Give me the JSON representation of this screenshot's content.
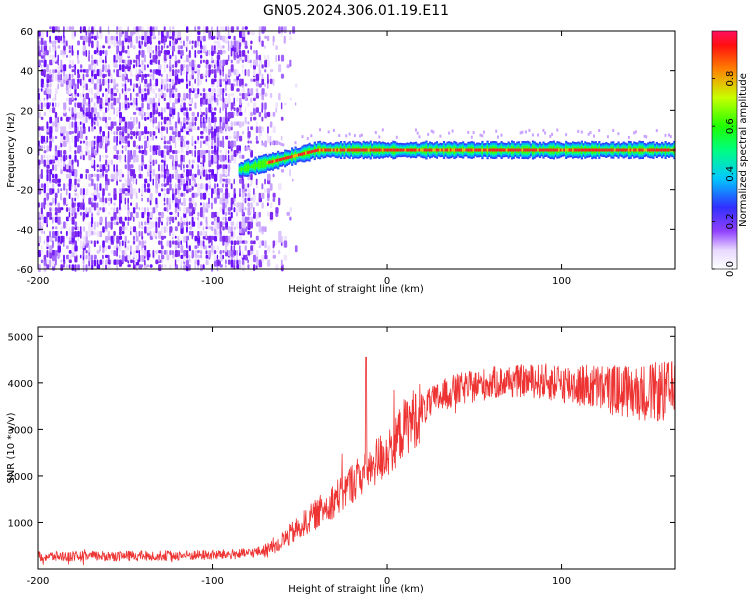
{
  "title": "GN05.2024.306.01.19.E11",
  "chart_data": [
    {
      "type": "heatmap",
      "xlabel": "Height of straight line (km)",
      "ylabel": "Frequency (Hz)",
      "xlim": [
        -200,
        165
      ],
      "ylim": [
        -60,
        60
      ],
      "xticks": [
        -200,
        -100,
        0,
        100
      ],
      "xtick_labels": [
        "-200",
        "-100",
        "0",
        "100"
      ],
      "yticks": [
        -60,
        -40,
        -20,
        0,
        20,
        40,
        60
      ],
      "ytick_labels": [
        "-60",
        "-40",
        "-20",
        "0",
        "20",
        "40",
        "60"
      ],
      "colorbar": {
        "label": "Normalized spectral amplitude",
        "range": [
          0,
          1
        ],
        "ticks": [
          0.0,
          0.2,
          0.4,
          0.6,
          0.8
        ],
        "tick_labels": [
          "0.0",
          "0.2",
          "0.4",
          "0.6",
          "0.8"
        ]
      },
      "features": {
        "noise_region_x": [
          -200,
          -60
        ],
        "signal_line_start_x": -85,
        "signal_line_freq_start": -10,
        "signal_line_freq_end": 0
      }
    },
    {
      "type": "line",
      "xlabel": "Height of straight line (km)",
      "ylabel": "SNR (10 * v/v)",
      "xlim": [
        -200,
        165
      ],
      "ylim": [
        0,
        5200
      ],
      "xticks": [
        -200,
        -100,
        0,
        100
      ],
      "xtick_labels": [
        "-200",
        "-100",
        "0",
        "100"
      ],
      "yticks": [
        1000,
        2000,
        3000,
        4000,
        5000
      ],
      "ytick_labels": [
        "1000",
        "2000",
        "3000",
        "4000",
        "5000"
      ],
      "series": [
        {
          "color": "#ee3333",
          "x": [
            -200,
            -150,
            -100,
            -80,
            -70,
            -60,
            -50,
            -40,
            -30,
            -20,
            -10,
            0,
            10,
            20,
            30,
            40,
            60,
            80,
            100,
            120,
            140,
            165
          ],
          "y": [
            270,
            280,
            300,
            330,
            400,
            600,
            900,
            1200,
            1500,
            1850,
            2200,
            2500,
            3050,
            3400,
            3700,
            3850,
            4000,
            4050,
            4000,
            3900,
            3800,
            3800
          ]
        }
      ],
      "spike": {
        "x": -12,
        "y": 4550
      }
    }
  ]
}
